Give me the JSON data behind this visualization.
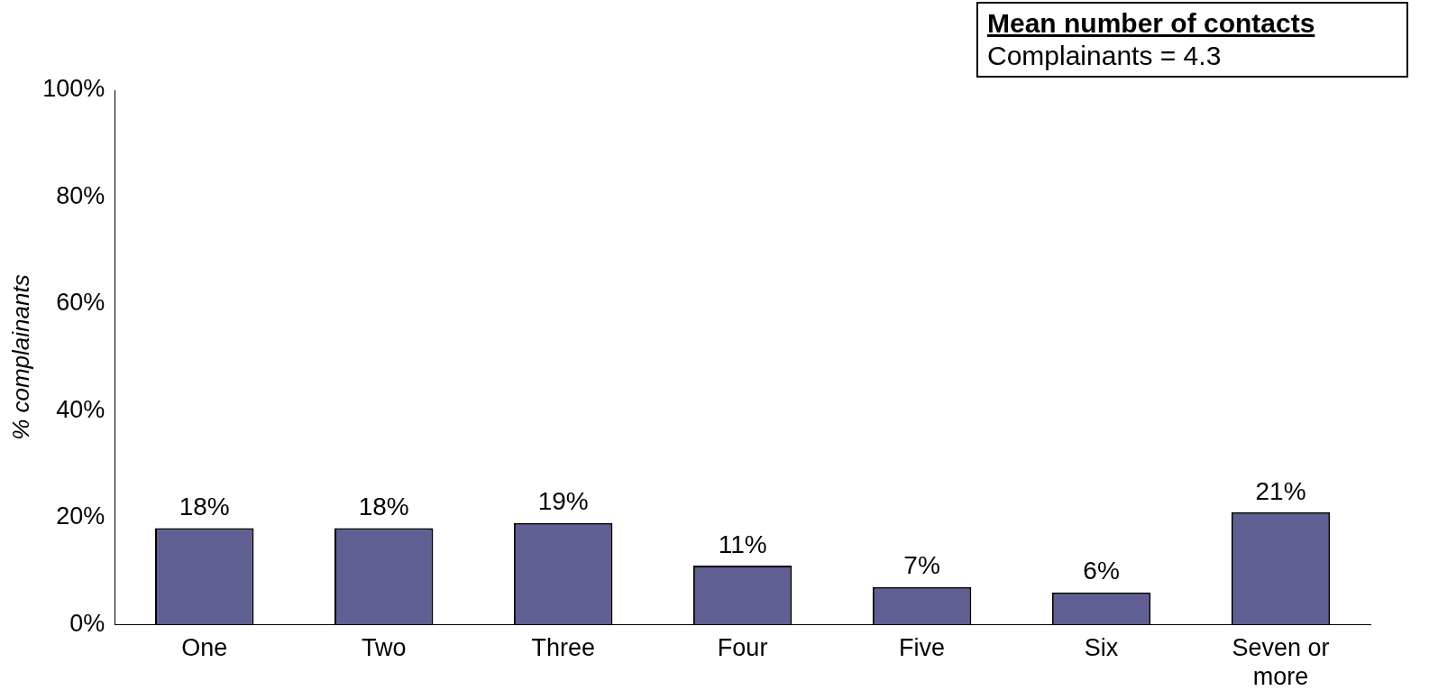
{
  "chart_data": {
    "type": "bar",
    "ylabel": "% complainants",
    "categories": [
      "One",
      "Two",
      "Three",
      "Four",
      "Five",
      "Six",
      "Seven or more"
    ],
    "values": [
      18,
      18,
      19,
      11,
      7,
      6,
      21
    ],
    "value_labels": [
      "18%",
      "18%",
      "19%",
      "11%",
      "7%",
      "6%",
      "21%"
    ],
    "color": "#5f5f94",
    "ylim": [
      0,
      100
    ],
    "yticks": [
      {
        "value": 0,
        "label": "0%"
      },
      {
        "value": 20,
        "label": "20%"
      },
      {
        "value": 40,
        "label": "40%"
      },
      {
        "value": 60,
        "label": "60%"
      },
      {
        "value": 80,
        "label": "80%"
      },
      {
        "value": 100,
        "label": "100%"
      }
    ],
    "grid": false,
    "legend": false,
    "annotations": [
      "Mean number of contacts",
      "Complainants = 4.3"
    ]
  }
}
